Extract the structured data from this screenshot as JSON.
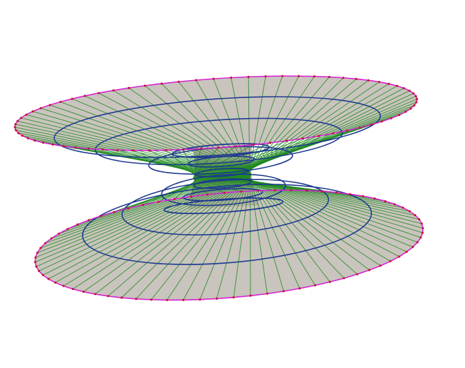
{
  "figure": {
    "kind": "hyperboloid-of-revolution wireframe",
    "colors": {
      "background": "#ffffff",
      "surface_fill": "#c9c4bd",
      "surface_fill_dark": "#b4aea6",
      "generator_lines": "#1f8a1f",
      "parallel_circles": "#1d3a8f",
      "rim_circles": "#d61fd6",
      "rim_points": "#cc1133"
    },
    "generator_count": 72,
    "parallel_circle_count": 12,
    "rim_point_count": 72
  }
}
